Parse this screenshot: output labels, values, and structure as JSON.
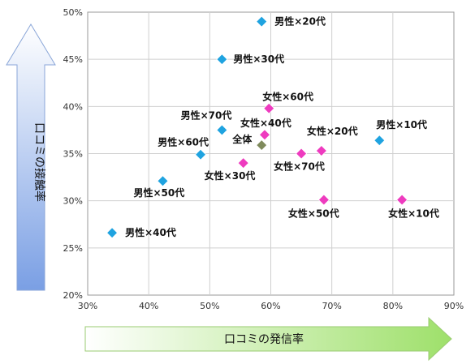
{
  "chart_data": {
    "type": "scatter",
    "xlabel": "口コミの発信率",
    "ylabel": "口コミの接触率",
    "xlim": [
      30,
      90
    ],
    "ylim": [
      20,
      50
    ],
    "x_ticks": [
      "30%",
      "40%",
      "50%",
      "60%",
      "70%",
      "80%",
      "90%"
    ],
    "y_ticks": [
      "20%",
      "25%",
      "30%",
      "35%",
      "40%",
      "45%",
      "50%"
    ],
    "grid": true,
    "colors": {
      "male": "#1fa3e0",
      "female": "#ee3bbf",
      "total": "#7f8a5c"
    },
    "points": [
      {
        "label": "男性×20代",
        "x": 58.5,
        "y": 49.0,
        "group": "male"
      },
      {
        "label": "男性×30代",
        "x": 52.0,
        "y": 45.0,
        "group": "male"
      },
      {
        "label": "男性×70代",
        "x": 52.0,
        "y": 37.5,
        "group": "male"
      },
      {
        "label": "男性×60代",
        "x": 48.5,
        "y": 34.9,
        "group": "male"
      },
      {
        "label": "男性×50代",
        "x": 42.3,
        "y": 32.1,
        "group": "male"
      },
      {
        "label": "男性×40代",
        "x": 34.0,
        "y": 26.6,
        "group": "male"
      },
      {
        "label": "男性×10代",
        "x": 77.8,
        "y": 36.4,
        "group": "male"
      },
      {
        "label": "女性×60代",
        "x": 59.7,
        "y": 39.8,
        "group": "female"
      },
      {
        "label": "女性×40代",
        "x": 59.0,
        "y": 37.0,
        "group": "female"
      },
      {
        "label": "女性×30代",
        "x": 55.5,
        "y": 34.0,
        "group": "female"
      },
      {
        "label": "女性×20代",
        "x": 68.3,
        "y": 35.3,
        "group": "female"
      },
      {
        "label": "女性×70代",
        "x": 65.0,
        "y": 35.0,
        "group": "female"
      },
      {
        "label": "女性×50代",
        "x": 68.7,
        "y": 30.1,
        "group": "female"
      },
      {
        "label": "女性×10代",
        "x": 81.5,
        "y": 30.1,
        "group": "female"
      },
      {
        "label": "全体",
        "x": 58.5,
        "y": 35.9,
        "group": "total"
      }
    ]
  }
}
